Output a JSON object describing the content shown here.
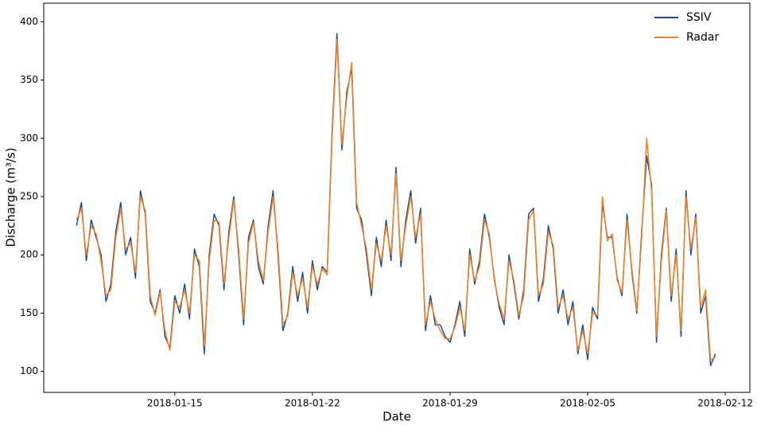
{
  "chart_data": {
    "type": "line",
    "xlabel": "Date",
    "ylabel": "Discharge (m³/s)",
    "x": [
      "2018-01-10 00:00",
      "2018-01-10 06:00",
      "2018-01-10 12:00",
      "2018-01-10 18:00",
      "2018-01-11 00:00",
      "2018-01-11 06:00",
      "2018-01-11 12:00",
      "2018-01-11 18:00",
      "2018-01-12 00:00",
      "2018-01-12 06:00",
      "2018-01-12 12:00",
      "2018-01-12 18:00",
      "2018-01-13 00:00",
      "2018-01-13 06:00",
      "2018-01-13 12:00",
      "2018-01-13 18:00",
      "2018-01-14 00:00",
      "2018-01-14 06:00",
      "2018-01-14 12:00",
      "2018-01-14 18:00",
      "2018-01-15 00:00",
      "2018-01-15 06:00",
      "2018-01-15 12:00",
      "2018-01-15 18:00",
      "2018-01-16 00:00",
      "2018-01-16 06:00",
      "2018-01-16 12:00",
      "2018-01-16 18:00",
      "2018-01-17 00:00",
      "2018-01-17 06:00",
      "2018-01-17 12:00",
      "2018-01-17 18:00",
      "2018-01-18 00:00",
      "2018-01-18 06:00",
      "2018-01-18 12:00",
      "2018-01-18 18:00",
      "2018-01-19 00:00",
      "2018-01-19 06:00",
      "2018-01-19 12:00",
      "2018-01-19 18:00",
      "2018-01-20 00:00",
      "2018-01-20 06:00",
      "2018-01-20 12:00",
      "2018-01-20 18:00",
      "2018-01-21 00:00",
      "2018-01-21 06:00",
      "2018-01-21 12:00",
      "2018-01-21 18:00",
      "2018-01-22 00:00",
      "2018-01-22 06:00",
      "2018-01-22 12:00",
      "2018-01-22 18:00",
      "2018-01-23 00:00",
      "2018-01-23 06:00",
      "2018-01-23 12:00",
      "2018-01-23 18:00",
      "2018-01-24 00:00",
      "2018-01-24 06:00",
      "2018-01-24 12:00",
      "2018-01-24 18:00",
      "2018-01-25 00:00",
      "2018-01-25 06:00",
      "2018-01-25 12:00",
      "2018-01-25 18:00",
      "2018-01-26 00:00",
      "2018-01-26 06:00",
      "2018-01-26 12:00",
      "2018-01-26 18:00",
      "2018-01-27 00:00",
      "2018-01-27 06:00",
      "2018-01-27 12:00",
      "2018-01-27 18:00",
      "2018-01-28 00:00",
      "2018-01-28 06:00",
      "2018-01-28 12:00",
      "2018-01-28 18:00",
      "2018-01-29 00:00",
      "2018-01-29 06:00",
      "2018-01-29 12:00",
      "2018-01-29 18:00",
      "2018-01-30 00:00",
      "2018-01-30 06:00",
      "2018-01-30 12:00",
      "2018-01-30 18:00",
      "2018-01-31 00:00",
      "2018-01-31 06:00",
      "2018-01-31 12:00",
      "2018-01-31 18:00",
      "2018-02-01 00:00",
      "2018-02-01 06:00",
      "2018-02-01 12:00",
      "2018-02-01 18:00",
      "2018-02-02 00:00",
      "2018-02-02 06:00",
      "2018-02-02 12:00",
      "2018-02-02 18:00",
      "2018-02-03 00:00",
      "2018-02-03 06:00",
      "2018-02-03 12:00",
      "2018-02-03 18:00",
      "2018-02-04 00:00",
      "2018-02-04 06:00",
      "2018-02-04 12:00",
      "2018-02-04 18:00",
      "2018-02-05 00:00",
      "2018-02-05 06:00",
      "2018-02-05 12:00",
      "2018-02-05 18:00",
      "2018-02-06 00:00",
      "2018-02-06 06:00",
      "2018-02-06 12:00",
      "2018-02-06 18:00",
      "2018-02-07 00:00",
      "2018-02-07 06:00",
      "2018-02-07 12:00",
      "2018-02-07 18:00",
      "2018-02-08 00:00",
      "2018-02-08 06:00",
      "2018-02-08 12:00",
      "2018-02-08 18:00",
      "2018-02-09 00:00",
      "2018-02-09 06:00",
      "2018-02-09 12:00",
      "2018-02-09 18:00",
      "2018-02-10 00:00",
      "2018-02-10 06:00",
      "2018-02-10 12:00",
      "2018-02-10 18:00",
      "2018-02-11 00:00",
      "2018-02-11 06:00",
      "2018-02-11 12:00"
    ],
    "series": [
      {
        "name": "SSIV",
        "color": "#1a4d99",
        "values": [
          225,
          245,
          195,
          230,
          215,
          200,
          160,
          175,
          220,
          245,
          200,
          215,
          180,
          255,
          235,
          160,
          150,
          170,
          130,
          120,
          165,
          150,
          175,
          145,
          205,
          190,
          115,
          200,
          235,
          225,
          170,
          220,
          250,
          200,
          140,
          215,
          230,
          190,
          175,
          225,
          255,
          200,
          135,
          150,
          190,
          160,
          185,
          150,
          195,
          170,
          190,
          185,
          305,
          390,
          290,
          340,
          360,
          240,
          230,
          200,
          165,
          215,
          190,
          230,
          195,
          275,
          190,
          230,
          255,
          210,
          240,
          135,
          165,
          140,
          140,
          130,
          125,
          140,
          160,
          130,
          205,
          175,
          195,
          235,
          215,
          180,
          155,
          140,
          200,
          175,
          145,
          170,
          235,
          240,
          160,
          180,
          225,
          205,
          150,
          170,
          140,
          160,
          115,
          140,
          110,
          155,
          145,
          245,
          215,
          215,
          180,
          165,
          235,
          185,
          150,
          220,
          285,
          260,
          125,
          200,
          240,
          160,
          205,
          130,
          255,
          200,
          235,
          150,
          165,
          105,
          115
        ]
      },
      {
        "name": "Radar",
        "color": "#f5821f",
        "values": [
          230,
          240,
          200,
          225,
          218,
          195,
          165,
          170,
          215,
          240,
          205,
          210,
          185,
          250,
          238,
          165,
          148,
          168,
          135,
          118,
          160,
          155,
          170,
          150,
          200,
          195,
          122,
          195,
          230,
          228,
          175,
          215,
          247,
          205,
          145,
          210,
          228,
          195,
          178,
          220,
          250,
          205,
          140,
          148,
          185,
          165,
          180,
          155,
          190,
          175,
          188,
          183,
          300,
          385,
          295,
          335,
          365,
          245,
          225,
          205,
          170,
          210,
          195,
          225,
          200,
          270,
          195,
          225,
          250,
          215,
          235,
          140,
          160,
          145,
          135,
          128,
          128,
          138,
          155,
          135,
          200,
          178,
          190,
          230,
          218,
          178,
          158,
          145,
          195,
          178,
          148,
          165,
          230,
          238,
          165,
          175,
          220,
          208,
          155,
          165,
          145,
          155,
          118,
          135,
          115,
          150,
          148,
          250,
          212,
          218,
          178,
          168,
          230,
          188,
          152,
          215,
          300,
          255,
          130,
          195,
          238,
          165,
          200,
          135,
          250,
          205,
          232,
          155,
          170,
          110,
          112
        ]
      }
    ],
    "xlim": [
      "2018-01-08 08:00",
      "2018-02-13 06:00"
    ],
    "xticks": [
      "2018-01-15",
      "2018-01-22",
      "2018-01-29",
      "2018-02-05",
      "2018-02-12"
    ],
    "ylim": [
      82,
      416
    ],
    "yticks": [
      100,
      150,
      200,
      250,
      300,
      350,
      400
    ],
    "legend": "upper right"
  }
}
